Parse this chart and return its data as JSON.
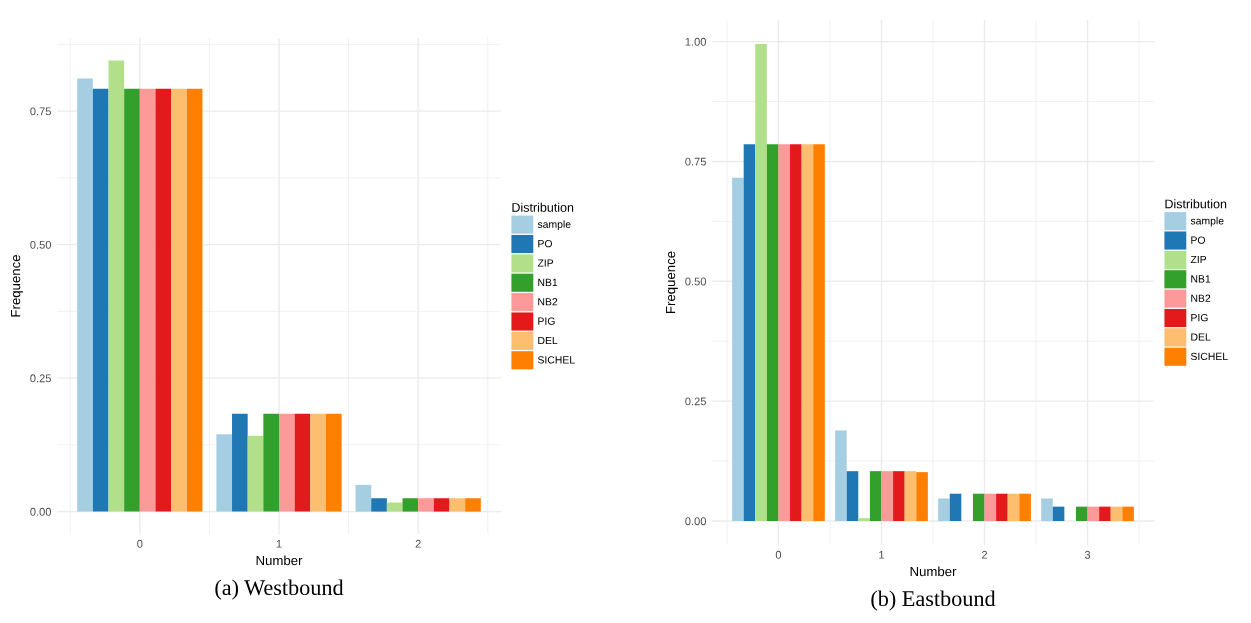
{
  "chart_data": [
    {
      "type": "bar",
      "title": "(a) Westbound",
      "xlabel": "Number",
      "ylabel": "Frequence",
      "legend_title": "Distribution",
      "legend": "right",
      "grid": true,
      "categories": [
        "0",
        "1",
        "2"
      ],
      "ylim": [
        -0.042,
        0.887
      ],
      "yticks": [
        {
          "value": 0,
          "label": "0.00"
        },
        {
          "value": 0.25,
          "label": "0.25"
        },
        {
          "value": 0.5,
          "label": "0.50"
        },
        {
          "value": 0.75,
          "label": "0.75"
        }
      ],
      "series": [
        {
          "name": "sample",
          "color": "#a6cee3",
          "values": [
            0.811,
            0.145,
            0.05
          ]
        },
        {
          "name": "PO",
          "color": "#1f78b4",
          "values": [
            0.792,
            0.183,
            0.025
          ]
        },
        {
          "name": "ZIP",
          "color": "#b2df8a",
          "values": [
            0.845,
            0.142,
            0.017
          ]
        },
        {
          "name": "NB1",
          "color": "#33a02c",
          "values": [
            0.792,
            0.183,
            0.025
          ]
        },
        {
          "name": "NB2",
          "color": "#fb9a99",
          "values": [
            0.792,
            0.183,
            0.025
          ]
        },
        {
          "name": "PIG",
          "color": "#e31a1c",
          "values": [
            0.792,
            0.183,
            0.025
          ]
        },
        {
          "name": "DEL",
          "color": "#fdbf6f",
          "values": [
            0.792,
            0.183,
            0.025
          ]
        },
        {
          "name": "SICHEL",
          "color": "#ff7f00",
          "values": [
            0.792,
            0.183,
            0.025
          ]
        }
      ]
    },
    {
      "type": "bar",
      "title": "(b) Eastbound",
      "xlabel": "Number",
      "ylabel": "Frequence",
      "legend_title": "Distribution",
      "legend": "right",
      "grid": true,
      "categories": [
        "0",
        "1",
        "2",
        "3"
      ],
      "ylim": [
        -0.05,
        1.045
      ],
      "yticks": [
        {
          "value": 0,
          "label": "0.00"
        },
        {
          "value": 0.25,
          "label": "0.25"
        },
        {
          "value": 0.5,
          "label": "0.50"
        },
        {
          "value": 0.75,
          "label": "0.75"
        },
        {
          "value": 1,
          "label": "1.00"
        }
      ],
      "series": [
        {
          "name": "sample",
          "color": "#a6cee3",
          "values": [
            0.716,
            0.189,
            0.047,
            0.047
          ]
        },
        {
          "name": "PO",
          "color": "#1f78b4",
          "values": [
            0.786,
            0.104,
            0.057,
            0.03
          ]
        },
        {
          "name": "ZIP",
          "color": "#b2df8a",
          "values": [
            0.995,
            0.006,
            0,
            0
          ]
        },
        {
          "name": "NB1",
          "color": "#33a02c",
          "values": [
            0.786,
            0.104,
            0.057,
            0.03
          ]
        },
        {
          "name": "NB2",
          "color": "#fb9a99",
          "values": [
            0.786,
            0.104,
            0.057,
            0.03
          ]
        },
        {
          "name": "PIG",
          "color": "#e31a1c",
          "values": [
            0.786,
            0.104,
            0.057,
            0.03
          ]
        },
        {
          "name": "DEL",
          "color": "#fdbf6f",
          "values": [
            0.786,
            0.104,
            0.057,
            0.03
          ]
        },
        {
          "name": "SICHEL",
          "color": "#ff7f00",
          "values": [
            0.786,
            0.102,
            0.057,
            0.03
          ]
        }
      ]
    }
  ]
}
